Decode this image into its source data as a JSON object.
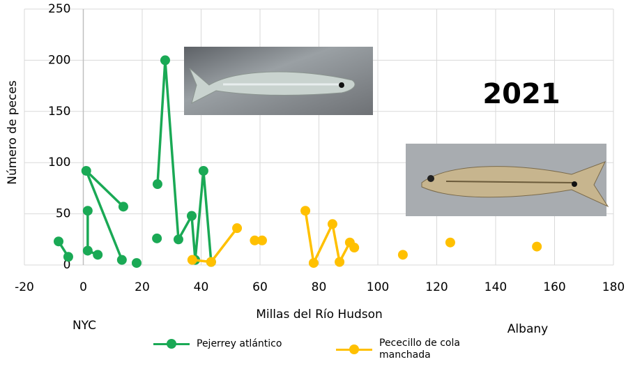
{
  "chart_data": {
    "type": "line",
    "x_label": "Millas del Río Hudson",
    "y_label": "Número de peces",
    "xlim": [
      -20,
      180
    ],
    "xticks": [
      -20,
      0,
      20,
      40,
      60,
      80,
      100,
      120,
      140,
      160,
      180
    ],
    "ylim": [
      0,
      250
    ],
    "yticks": [
      0,
      50,
      100,
      150,
      200,
      250
    ],
    "grid": true,
    "legend": "bottom",
    "annotations": [
      "2021",
      "NYC",
      "Albany"
    ],
    "series": [
      {
        "name": "Pejerrey atlántico",
        "color": "#1aa955",
        "x": [
          -8.4,
          -5.1,
          null,
          13.6,
          1,
          13.1,
          null,
          1.5,
          1.5,
          4.9,
          null,
          18.1,
          null,
          25,
          null,
          25.2,
          27.8,
          32.3,
          36.8,
          38,
          40.8,
          43.4
        ],
        "values": [
          23,
          8,
          null,
          57,
          92,
          5,
          null,
          53,
          14,
          10,
          null,
          2,
          null,
          26,
          null,
          79,
          200,
          25,
          48,
          5,
          92,
          3
        ]
      },
      {
        "name": "Pececillo de cola manchada",
        "color": "#ffc000",
        "x": [
          37,
          43.4,
          52.2,
          null,
          58.2,
          60.7,
          null,
          75.4,
          78.2,
          84.6,
          87,
          90.5,
          92,
          null,
          108.5,
          null,
          124.6,
          null,
          154
        ],
        "values": [
          5,
          3,
          36,
          null,
          24,
          24,
          null,
          53,
          2,
          40,
          3,
          22,
          17,
          null,
          10,
          null,
          22,
          null,
          18
        ]
      }
    ]
  }
}
